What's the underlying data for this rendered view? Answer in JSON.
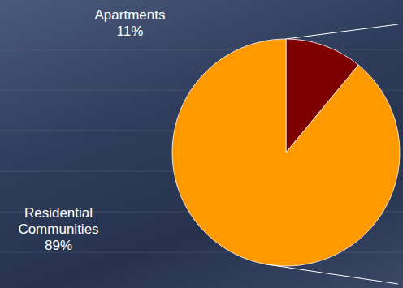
{
  "chart_data": {
    "type": "pie",
    "categories": [
      "Apartments",
      "Residential Communities"
    ],
    "values": [
      11,
      89
    ],
    "value_labels": [
      "11%",
      "89%"
    ],
    "colors": [
      "#7f0000",
      "#ff9900"
    ],
    "data_labels": true
  }
}
